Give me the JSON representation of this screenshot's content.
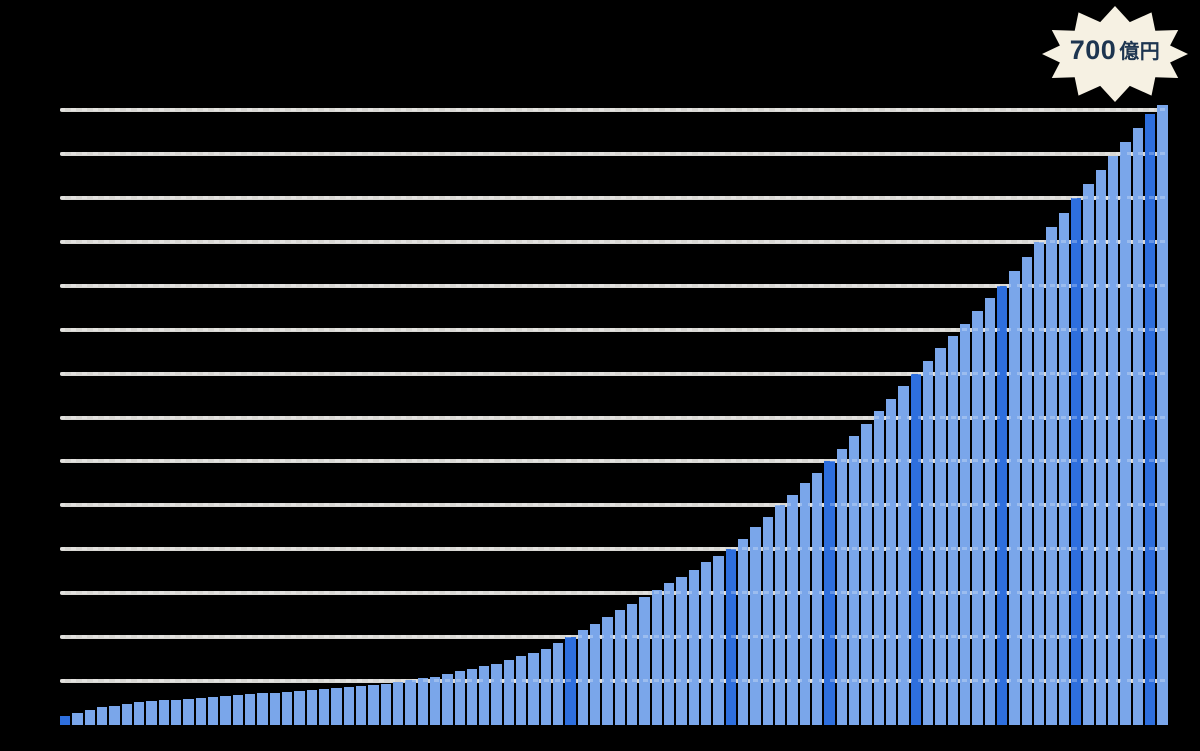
{
  "badge": {
    "amount": "700",
    "unit": "億円",
    "full_text": "700億円"
  },
  "colors": {
    "bar_light": "#7aa6ea",
    "bar_dark": "#2e6fde",
    "gridline": "#d8d7d3",
    "background": "#000000",
    "badge_bg": "#f6f1e3",
    "badge_text": "#1d3550"
  },
  "chart_data": {
    "type": "bar",
    "title": "",
    "annotation": {
      "text": "700億円",
      "position": "top-right",
      "points_to": "last-bar"
    },
    "unit": "億円",
    "ylim": [
      0,
      700
    ],
    "gridline_interval": 50,
    "grid": "on",
    "legend": "none",
    "x_axis": {
      "labels_visible": false
    },
    "y_axis": {
      "labels_visible": false
    },
    "milestone_indices": [
      0,
      41,
      54,
      62,
      69,
      76,
      82,
      88
    ],
    "values": [
      10,
      14,
      17,
      20,
      22,
      24,
      26,
      27,
      28,
      29,
      30,
      31,
      32,
      33,
      34,
      35,
      36,
      37,
      38,
      39,
      40,
      41,
      42,
      43,
      44,
      45,
      47,
      49,
      51,
      53,
      55,
      58,
      61,
      64,
      67,
      70,
      74,
      78,
      82,
      87,
      93,
      100,
      108,
      115,
      123,
      131,
      138,
      146,
      154,
      162,
      169,
      177,
      185,
      192,
      200,
      212,
      225,
      237,
      250,
      262,
      275,
      287,
      300,
      314,
      329,
      343,
      357,
      371,
      386,
      400,
      414,
      429,
      443,
      457,
      471,
      486,
      500,
      517,
      533,
      550,
      567,
      583,
      600,
      616,
      632,
      648,
      664,
      680,
      695,
      706
    ]
  }
}
